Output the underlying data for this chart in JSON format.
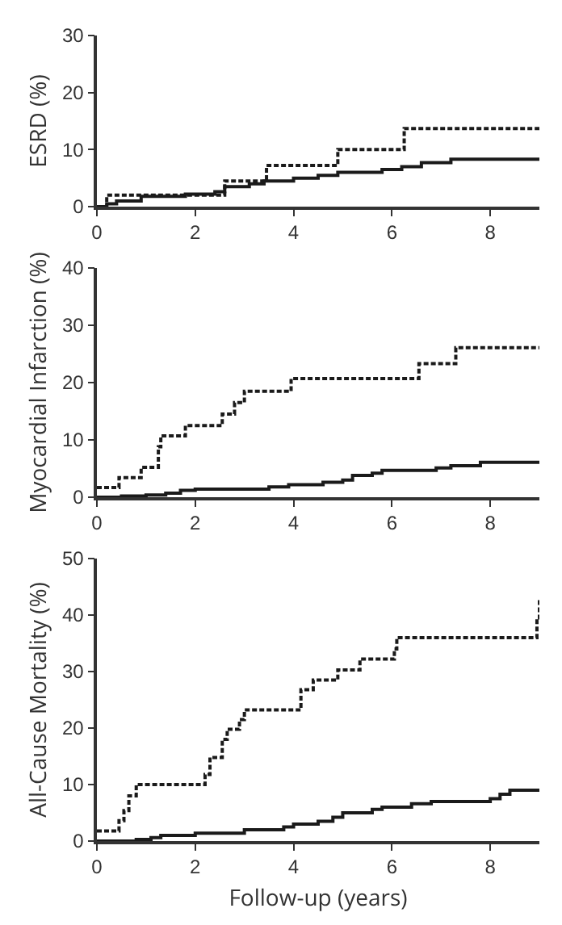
{
  "chart_data": [
    {
      "type": "step",
      "ylabel": "ESRD (%)",
      "xlim": [
        0,
        9
      ],
      "xticks": [
        0,
        2,
        4,
        6,
        8
      ],
      "ylim": [
        0,
        30
      ],
      "yticks": [
        0,
        10,
        20,
        30
      ],
      "series": [
        {
          "color": "#1a1a1a",
          "line_style": "dashed",
          "x": [
            0,
            0.2,
            2.6,
            3.45,
            4.9,
            6.25,
            9
          ],
          "values": [
            0,
            2,
            4.5,
            7.2,
            10,
            13.7,
            13.7
          ]
        },
        {
          "color": "#1a1a1a",
          "line_style": "solid",
          "x": [
            0,
            0.2,
            0.4,
            0.9,
            1.8,
            2.4,
            2.6,
            3.1,
            3.4,
            4.0,
            4.5,
            4.9,
            5.8,
            6.2,
            6.6,
            7.2,
            9
          ],
          "values": [
            0,
            0.5,
            1,
            1.8,
            2.2,
            2.6,
            3.5,
            4,
            4.5,
            5,
            5.5,
            6,
            6.5,
            7,
            7.7,
            8.3,
            8.3
          ]
        }
      ]
    },
    {
      "type": "step",
      "ylabel": "Myocardial Infarction (%)",
      "xlim": [
        0,
        9
      ],
      "xticks": [
        0,
        2,
        4,
        6,
        8
      ],
      "ylim": [
        0,
        40
      ],
      "yticks": [
        0,
        10,
        20,
        30,
        40
      ],
      "series": [
        {
          "color": "#1a1a1a",
          "line_style": "dashed",
          "x": [
            0,
            0.45,
            0.9,
            1.25,
            1.3,
            1.8,
            2.55,
            2.8,
            3.0,
            3.95,
            6.55,
            7.3,
            9
          ],
          "values": [
            1.7,
            3.4,
            5.2,
            8.8,
            10.7,
            12.5,
            14.5,
            16.5,
            18.5,
            20.7,
            23.3,
            26.1,
            26.1
          ]
        },
        {
          "color": "#1a1a1a",
          "line_style": "solid",
          "x": [
            0,
            0.5,
            1.0,
            1.4,
            1.7,
            2.0,
            3.5,
            3.9,
            4.6,
            5.0,
            5.2,
            5.6,
            5.8,
            6.9,
            7.2,
            7.8,
            9
          ],
          "values": [
            0,
            0.2,
            0.4,
            0.7,
            1.2,
            1.4,
            1.8,
            2.2,
            2.6,
            3.0,
            3.8,
            4.2,
            4.7,
            5.1,
            5.5,
            6.1,
            6.1
          ]
        }
      ]
    },
    {
      "type": "step",
      "xlabel": "Follow-up (years)",
      "ylabel": "All-Cause Mortality (%)",
      "xlim": [
        0,
        9
      ],
      "xticks": [
        0,
        2,
        4,
        6,
        8
      ],
      "ylim": [
        0,
        50
      ],
      "yticks": [
        0,
        10,
        20,
        30,
        40,
        50
      ],
      "series": [
        {
          "color": "#1a1a1a",
          "line_style": "dashed",
          "x": [
            0,
            0.45,
            0.55,
            0.65,
            0.8,
            2.2,
            2.3,
            2.55,
            2.65,
            2.9,
            3.0,
            4.15,
            4.4,
            4.9,
            5.35,
            6.05,
            6.1,
            8.95,
            9.0
          ],
          "values": [
            1.8,
            3.6,
            5.4,
            8,
            10,
            11.8,
            14.8,
            18,
            19.8,
            21.5,
            23.2,
            26.8,
            28.5,
            30.3,
            32.2,
            34,
            36,
            39.5,
            43
          ]
        },
        {
          "color": "#1a1a1a",
          "line_style": "solid",
          "x": [
            0,
            0.8,
            1.1,
            1.3,
            2,
            3,
            3.8,
            4.0,
            4.5,
            4.8,
            5.0,
            5.6,
            5.8,
            6.4,
            6.8,
            8.0,
            8.2,
            8.4,
            9
          ],
          "values": [
            0,
            0.3,
            0.6,
            1,
            1.4,
            2,
            2.5,
            3,
            3.5,
            4.2,
            5,
            5.6,
            6,
            6.6,
            7,
            7.5,
            8.3,
            9,
            9
          ]
        }
      ]
    }
  ]
}
